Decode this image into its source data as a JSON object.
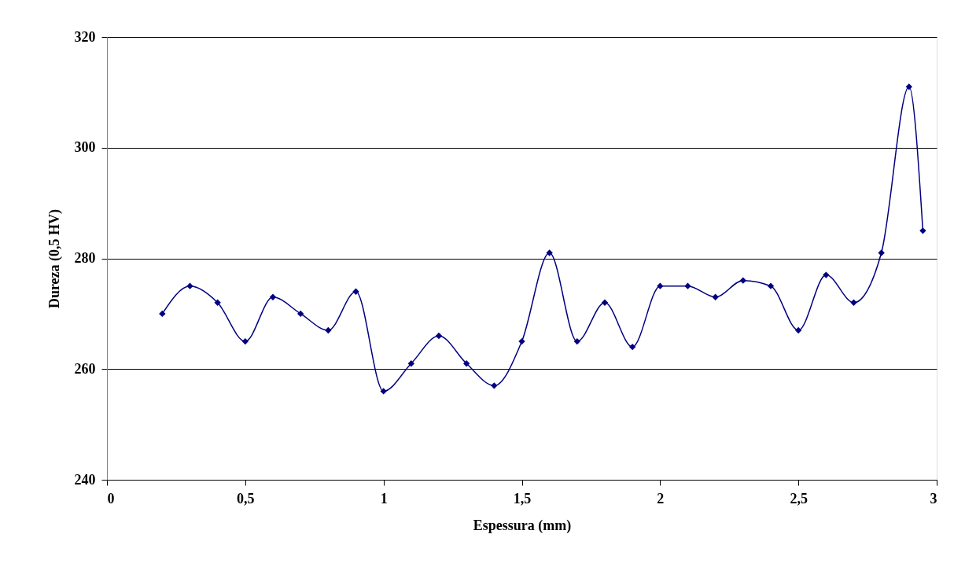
{
  "chart_data": {
    "type": "line",
    "xlabel": "Espessura (mm)",
    "ylabel": "Dureza (0,5 HV)",
    "x": [
      0.2,
      0.3,
      0.4,
      0.5,
      0.6,
      0.7,
      0.8,
      0.9,
      1.0,
      1.1,
      1.2,
      1.3,
      1.4,
      1.5,
      1.6,
      1.7,
      1.8,
      1.9,
      2.0,
      2.1,
      2.2,
      2.3,
      2.4,
      2.5,
      2.6,
      2.7,
      2.8,
      2.9,
      2.95
    ],
    "series": [
      {
        "color": "#000080",
        "values": [
          270,
          275,
          272,
          265,
          273,
          270,
          267,
          274,
          256,
          261,
          266,
          261,
          257,
          265,
          281,
          265,
          272,
          264,
          275,
          275,
          273,
          276,
          275,
          267,
          277,
          272,
          281,
          311,
          285
        ]
      }
    ],
    "xlim": [
      0,
      3
    ],
    "xticks": [
      0,
      {
        "value": 0.5,
        "label": "0,5"
      },
      1,
      {
        "value": 1.5,
        "label": "1,5"
      },
      2,
      {
        "value": 2.5,
        "label": "2,5"
      },
      3
    ],
    "ylim": [
      240,
      320
    ],
    "yticks": [
      240,
      260,
      280,
      300,
      320
    ],
    "grid": "y",
    "marker": "diamond",
    "line_style": "solid"
  }
}
